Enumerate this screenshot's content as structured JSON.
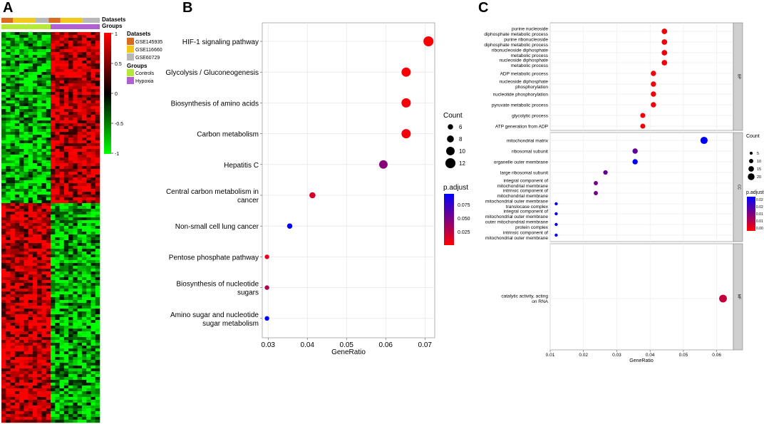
{
  "panel_letters": {
    "a": "A",
    "b": "B",
    "c": "C"
  },
  "colors": {
    "gse145935": "#d96b1f",
    "gse116660": "#f2c81a",
    "gse60729": "#b8b8b8",
    "controls": "#b6e83a",
    "hypoxia": "#b060d0",
    "padj_low": "#ff0000",
    "padj_high": "#0000ff",
    "heat_high": "#ff0000",
    "heat_mid": "#000000",
    "heat_low": "#00ff00"
  },
  "chart_data": [
    {
      "type": "heatmap",
      "annotations": {
        "datasets_label": "Datasets",
        "groups_label": "Groups"
      },
      "legend_datasets": {
        "title": "Datasets",
        "items": [
          "GSE145935",
          "GSE116660",
          "GSE60729"
        ]
      },
      "legend_groups": {
        "title": "Groups",
        "items": [
          "Controls",
          "Hypoxia"
        ]
      },
      "colorbar": {
        "ticks": [
          "1",
          "0.5",
          "0",
          "-0.5",
          "-1"
        ],
        "range": [
          -1,
          1
        ]
      },
      "column_groups": [
        "Controls",
        "Hypoxia"
      ],
      "row_blocks": [
        "down in controls / up in hypoxia",
        "up in controls / down in hypoxia"
      ]
    },
    {
      "type": "scatter",
      "title": "",
      "xlabel": "GeneRatio",
      "xlim": [
        0.0285,
        0.0725
      ],
      "xticks": [
        "0.03",
        "0.04",
        "0.05",
        "0.06",
        "0.07"
      ],
      "xtick_values": [
        0.03,
        0.04,
        0.05,
        0.06,
        0.07
      ],
      "terms": [
        {
          "label": [
            "HIF-1 signaling pathway"
          ],
          "x": 0.0709,
          "count": 12,
          "padj": 0.001
        },
        {
          "label": [
            "Glycolysis / Gluconeogenesis"
          ],
          "x": 0.0652,
          "count": 11,
          "padj": 0.002
        },
        {
          "label": [
            "Biosynthesis of amino acids"
          ],
          "x": 0.0652,
          "count": 11,
          "padj": 0.003
        },
        {
          "label": [
            "Carbon metabolism"
          ],
          "x": 0.0652,
          "count": 11,
          "padj": 0.004
        },
        {
          "label": [
            "Hepatitis C"
          ],
          "x": 0.0594,
          "count": 10,
          "padj": 0.045
        },
        {
          "label": [
            "Central carbon metabolism in",
            "cancer"
          ],
          "x": 0.0413,
          "count": 7,
          "padj": 0.015
        },
        {
          "label": [
            "Non-small cell lung cancer"
          ],
          "x": 0.0355,
          "count": 6,
          "padj": 0.095
        },
        {
          "label": [
            "Pentose phosphate pathway"
          ],
          "x": 0.0297,
          "count": 5,
          "padj": 0.01
        },
        {
          "label": [
            "Biosynthesis of nucleotide",
            "sugars"
          ],
          "x": 0.0297,
          "count": 5,
          "padj": 0.03
        },
        {
          "label": [
            "Amino sugar and nucleotide",
            "sugar metabolism"
          ],
          "x": 0.0297,
          "count": 5,
          "padj": 0.095
        }
      ],
      "size_legend": {
        "title": "Count",
        "values": [
          6,
          8,
          10,
          12
        ]
      },
      "color_legend": {
        "title": "p.adjust",
        "ticks": [
          "0.075",
          "0.050",
          "0.025"
        ],
        "tick_values": [
          0.075,
          0.05,
          0.025
        ],
        "range": [
          0.0,
          0.095
        ]
      }
    },
    {
      "type": "scatter",
      "title": "",
      "xlabel": "GeneRatio",
      "xlim": [
        0.01,
        0.065
      ],
      "xticks": [
        "0.01",
        "0.02",
        "0.03",
        "0.04",
        "0.05",
        "0.06"
      ],
      "xtick_values": [
        0.01,
        0.02,
        0.03,
        0.04,
        0.05,
        0.06
      ],
      "facets": [
        {
          "strip": "BP",
          "terms": [
            {
              "label": [
                "purine nucleoside",
                "diphosphate metabolic process"
              ],
              "x": 0.0443,
              "count": 13,
              "padj": 0.001
            },
            {
              "label": [
                "purine ribonucleoside",
                "diphosphate metabolic process"
              ],
              "x": 0.0443,
              "count": 13,
              "padj": 0.001
            },
            {
              "label": [
                "ribonucleoside diphosphate",
                "metabolic process"
              ],
              "x": 0.0443,
              "count": 13,
              "padj": 0.001
            },
            {
              "label": [
                "nucleoside diphosphate",
                "metabolic process"
              ],
              "x": 0.0443,
              "count": 13,
              "padj": 0.001
            },
            {
              "label": [
                "ADP metabolic process"
              ],
              "x": 0.041,
              "count": 12,
              "padj": 0.001
            },
            {
              "label": [
                "nucleoside diphosphate",
                "phosphorylation"
              ],
              "x": 0.041,
              "count": 12,
              "padj": 0.001
            },
            {
              "label": [
                "nucleotide phosphorylation"
              ],
              "x": 0.041,
              "count": 12,
              "padj": 0.001
            },
            {
              "label": [
                "pyruvate metabolic process"
              ],
              "x": 0.041,
              "count": 12,
              "padj": 0.001
            },
            {
              "label": [
                "glycolytic process"
              ],
              "x": 0.0378,
              "count": 11,
              "padj": 0.001
            },
            {
              "label": [
                "ATP generation from ADP"
              ],
              "x": 0.0378,
              "count": 11,
              "padj": 0.001
            }
          ]
        },
        {
          "strip": "CC",
          "terms": [
            {
              "label": [
                "mitochondrial matrix"
              ],
              "x": 0.0562,
              "count": 19,
              "padj": 0.026
            },
            {
              "label": [
                "ribosomal subunit"
              ],
              "x": 0.0355,
              "count": 12,
              "padj": 0.016
            },
            {
              "label": [
                "organelle outer membrane"
              ],
              "x": 0.0355,
              "count": 12,
              "padj": 0.026
            },
            {
              "label": [
                "large ribosomal subunit"
              ],
              "x": 0.0266,
              "count": 9,
              "padj": 0.016
            },
            {
              "label": [
                "integral component of",
                "mitochondrial membrane"
              ],
              "x": 0.0237,
              "count": 8,
              "padj": 0.014
            },
            {
              "label": [
                "intrinsic component of",
                "mitochondrial membrane"
              ],
              "x": 0.0237,
              "count": 8,
              "padj": 0.014
            },
            {
              "label": [
                "mitochondrial outer membrane",
                "translocase complex"
              ],
              "x": 0.0118,
              "count": 4,
              "padj": 0.026
            },
            {
              "label": [
                "integral component of",
                "mitochondrial outer membrane"
              ],
              "x": 0.0118,
              "count": 4,
              "padj": 0.026
            },
            {
              "label": [
                "outer mitochondrial membrane",
                "protein complex"
              ],
              "x": 0.0118,
              "count": 4,
              "padj": 0.026
            },
            {
              "label": [
                "intrinsic component of",
                "mitochondrial outer membrane"
              ],
              "x": 0.0118,
              "count": 4,
              "padj": 0.026
            }
          ]
        },
        {
          "strip": "MF",
          "terms": [
            {
              "label": [
                "catalytic activity, acting",
                "on RNA"
              ],
              "x": 0.0619,
              "count": 21,
              "padj": 0.006
            }
          ]
        }
      ],
      "size_legend": {
        "title": "Count",
        "values": [
          5,
          10,
          15,
          20
        ]
      },
      "color_legend": {
        "title": "p.adjust",
        "ticks": [
          "0.02",
          "0.02",
          "0.01",
          "0.01",
          "0.00"
        ],
        "tick_values": [
          0.024,
          0.019,
          0.013,
          0.008,
          0.002
        ],
        "range": [
          0.0,
          0.026
        ]
      }
    }
  ]
}
